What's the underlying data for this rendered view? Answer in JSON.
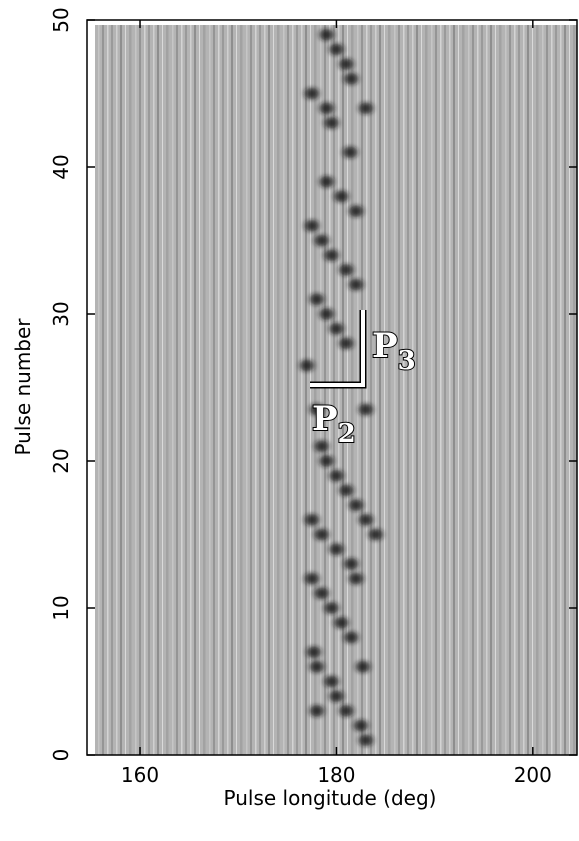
{
  "chart_data": {
    "type": "scatter",
    "xlabel": "Pulse longitude (deg)",
    "ylabel": "Pulse number",
    "xlim": [
      154.6,
      204.5
    ],
    "ylim": [
      0,
      50
    ],
    "xticks": [
      160,
      180,
      200
    ],
    "yticks": [
      0,
      10,
      20,
      30,
      40,
      50
    ],
    "color": "#1a1a1a",
    "x": [
      183,
      182.5,
      181,
      178,
      180,
      179.5,
      178,
      182.7,
      177.7,
      181.5,
      180.5,
      179.5,
      178.5,
      177.5,
      182,
      181.5,
      180,
      178.5,
      184,
      177.5,
      183,
      182,
      181,
      180,
      179,
      178.5,
      178,
      183,
      177,
      181,
      180,
      179,
      178,
      182,
      181,
      179.5,
      178.5,
      177.5,
      182,
      180.5,
      179,
      181.4,
      179.5,
      179,
      183,
      177.5,
      181.5,
      181,
      180,
      179
    ],
    "y": [
      1,
      2,
      3,
      3,
      4,
      5,
      6,
      6,
      7,
      8,
      9,
      10,
      11,
      12,
      12,
      13,
      14,
      15,
      15,
      16,
      16,
      17,
      18,
      19,
      20,
      21,
      23.5,
      23.5,
      26.5,
      28,
      29,
      30,
      31,
      32,
      33,
      34,
      35,
      36,
      37,
      38,
      39,
      41,
      43,
      44,
      44,
      45,
      46,
      47,
      48,
      49
    ],
    "annotations": [
      {
        "text": "P",
        "subscript": "3"
      },
      {
        "text": "P",
        "subscript": "2"
      }
    ]
  }
}
